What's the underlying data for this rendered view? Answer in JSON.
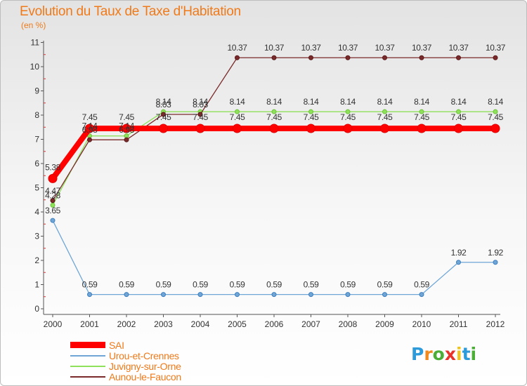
{
  "header": {
    "title": "Evolution du Taux de Taxe d'Habitation",
    "subtitle": "(en %)"
  },
  "logo": {
    "text": "Proxiti",
    "letter_colors": [
      "#2d9ad9",
      "#f08a1c",
      "#4cae37",
      "#e8332a",
      "#f0c41a",
      "#2d9ad9",
      "#4cae37"
    ]
  },
  "chart_data": {
    "type": "line",
    "x": [
      "2000",
      "2001",
      "2002",
      "2003",
      "2004",
      "2005",
      "2006",
      "2007",
      "2008",
      "2009",
      "2010",
      "2011",
      "2012"
    ],
    "ylim": [
      0,
      11
    ],
    "yticks": [
      "0",
      "1",
      "2",
      "3",
      "4",
      "5",
      "6",
      "7",
      "8",
      "9",
      "10",
      "11"
    ],
    "grid": false,
    "legend_position": "bottom-left",
    "series": [
      {
        "name": "SAI",
        "color": "#ff0000",
        "values": [
          5.38,
          7.45,
          7.45,
          7.45,
          7.45,
          7.45,
          7.45,
          7.45,
          7.45,
          7.45,
          7.45,
          7.45,
          7.45
        ],
        "labels": [
          "5.38",
          "7.45",
          "7.45",
          "7.45",
          "7.45",
          "7.45",
          "7.45",
          "7.45",
          "7.45",
          "7.45",
          "7.45",
          "7.45",
          "7.45"
        ]
      },
      {
        "name": "Urou-et-Crennes",
        "color": "#6fa6d6",
        "values": [
          3.65,
          0.59,
          0.59,
          0.59,
          0.59,
          0.59,
          0.59,
          0.59,
          0.59,
          0.59,
          0.59,
          1.92,
          1.92
        ],
        "labels": [
          "3.65",
          "0.59",
          "0.59",
          "0.59",
          "0.59",
          "0.59",
          "0.59",
          "0.59",
          "0.59",
          "0.59",
          "0.59",
          "1.92",
          "1.92"
        ]
      },
      {
        "name": "Juvigny-sur-Orne",
        "color": "#8fe05a",
        "values": [
          4.28,
          7.14,
          7.14,
          8.14,
          8.14,
          8.14,
          8.14,
          8.14,
          8.14,
          8.14,
          8.14,
          8.14,
          8.14
        ],
        "labels": [
          "4.28",
          "7.14",
          "7.14",
          "8.14",
          "8.14",
          "8.14",
          "8.14",
          "8.14",
          "8.14",
          "8.14",
          "8.14",
          "8.14",
          "8.14"
        ]
      },
      {
        "name": "Aunou-le-Faucon",
        "color": "#7a2a2a",
        "values": [
          4.47,
          6.98,
          6.98,
          8.03,
          8.03,
          10.37,
          10.37,
          10.37,
          10.37,
          10.37,
          10.37,
          10.37,
          10.37
        ],
        "labels": [
          "4.47",
          "6.98",
          "6.98",
          "8.03",
          "8.03",
          "10.37",
          "10.37",
          "10.37",
          "10.37",
          "10.37",
          "10.37",
          "10.37",
          "10.37"
        ]
      }
    ]
  }
}
